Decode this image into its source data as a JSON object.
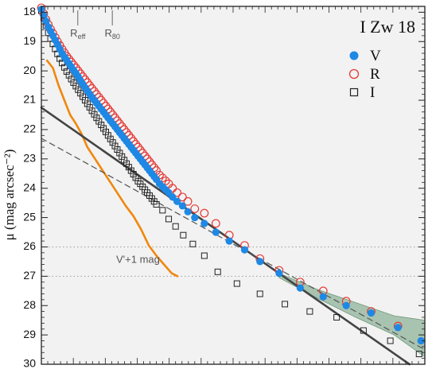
{
  "chart_data": {
    "type": "scatter",
    "title": "I Zw 18",
    "ylabel": "μ (mag arcsec⁻²)",
    "ylim": [
      30,
      17.8
    ],
    "y_inverted": true,
    "xlim": [
      0,
      100
    ],
    "y_ticks": [
      "18",
      "19",
      "20",
      "21",
      "22",
      "23",
      "24",
      "25",
      "26",
      "27",
      "28",
      "29",
      "30"
    ],
    "legend": {
      "placement": "top-right",
      "entries": [
        {
          "label": "V",
          "marker": "filled-circle",
          "color": "#1e88e5"
        },
        {
          "label": "R",
          "marker": "open-circle",
          "color": "#e53935"
        },
        {
          "label": "I",
          "marker": "open-square",
          "color": "#222222"
        }
      ]
    },
    "annotations": {
      "reff": {
        "label": "R",
        "sub": "eff",
        "x": 9.5
      },
      "r80": {
        "label": "R",
        "sub": "80",
        "x": 18.5
      },
      "offset_label": "V'+1 mag",
      "reference_levels": [
        26.0,
        27.0
      ]
    },
    "series": [
      {
        "name": "V",
        "color": "#1e88e5",
        "marker": "filled-circle",
        "points": [
          [
            0,
            17.9
          ],
          [
            0.6,
            18.1
          ],
          [
            1.2,
            18.3
          ],
          [
            1.8,
            18.5
          ],
          [
            2.4,
            18.65
          ],
          [
            3.0,
            18.8
          ],
          [
            3.6,
            18.95
          ],
          [
            4.2,
            19.1
          ],
          [
            4.8,
            19.25
          ],
          [
            5.4,
            19.4
          ],
          [
            6.0,
            19.52
          ],
          [
            6.6,
            19.63
          ],
          [
            7.2,
            19.75
          ],
          [
            7.8,
            19.86
          ],
          [
            8.4,
            19.97
          ],
          [
            9.0,
            20.08
          ],
          [
            9.6,
            20.2
          ],
          [
            10.2,
            20.33
          ],
          [
            10.8,
            20.45
          ],
          [
            11.4,
            20.57
          ],
          [
            12.0,
            20.68
          ],
          [
            12.6,
            20.79
          ],
          [
            13.2,
            20.9
          ],
          [
            13.8,
            21.0
          ],
          [
            14.4,
            21.1
          ],
          [
            15.0,
            21.2
          ],
          [
            15.6,
            21.3
          ],
          [
            16.2,
            21.4
          ],
          [
            16.8,
            21.5
          ],
          [
            17.4,
            21.6
          ],
          [
            18.0,
            21.7
          ],
          [
            18.6,
            21.8
          ],
          [
            19.2,
            21.9
          ],
          [
            19.8,
            22.0
          ],
          [
            20.4,
            22.1
          ],
          [
            21.0,
            22.2
          ],
          [
            21.6,
            22.3
          ],
          [
            22.2,
            22.4
          ],
          [
            22.8,
            22.5
          ],
          [
            23.4,
            22.6
          ],
          [
            24.0,
            22.7
          ],
          [
            24.6,
            22.8
          ],
          [
            25.2,
            22.9
          ],
          [
            25.8,
            23.0
          ],
          [
            26.4,
            23.1
          ],
          [
            27.0,
            23.2
          ],
          [
            27.6,
            23.3
          ],
          [
            28.2,
            23.4
          ],
          [
            28.8,
            23.5
          ],
          [
            29.4,
            23.6
          ],
          [
            30.0,
            23.7
          ],
          [
            30.8,
            23.85
          ],
          [
            31.6,
            23.95
          ],
          [
            32.4,
            24.05
          ],
          [
            33.2,
            24.15
          ],
          [
            34.2,
            24.3
          ],
          [
            35.4,
            24.45
          ],
          [
            36.8,
            24.6
          ],
          [
            38.2,
            24.8
          ],
          [
            40.0,
            25.0
          ],
          [
            42.5,
            25.2
          ],
          [
            45.5,
            25.5
          ],
          [
            49.0,
            25.8
          ],
          [
            53.0,
            26.1
          ],
          [
            57.0,
            26.5
          ],
          [
            62.0,
            26.9
          ],
          [
            67.5,
            27.4
          ],
          [
            73.5,
            27.7
          ],
          [
            79.5,
            28.0
          ],
          [
            86.0,
            28.25
          ],
          [
            93.0,
            28.75
          ],
          [
            99.0,
            29.2
          ]
        ]
      },
      {
        "name": "R",
        "color": "#e53935",
        "marker": "open-circle",
        "points": [
          [
            0,
            17.85
          ],
          [
            0.6,
            18.05
          ],
          [
            1.2,
            18.25
          ],
          [
            1.8,
            18.42
          ],
          [
            2.4,
            18.58
          ],
          [
            3.0,
            18.72
          ],
          [
            3.6,
            18.86
          ],
          [
            4.2,
            19.0
          ],
          [
            4.8,
            19.13
          ],
          [
            5.4,
            19.26
          ],
          [
            6.0,
            19.38
          ],
          [
            6.6,
            19.5
          ],
          [
            7.2,
            19.6
          ],
          [
            7.8,
            19.7
          ],
          [
            8.4,
            19.8
          ],
          [
            9.0,
            19.9
          ],
          [
            9.6,
            20.0
          ],
          [
            10.2,
            20.1
          ],
          [
            10.8,
            20.2
          ],
          [
            11.4,
            20.3
          ],
          [
            12.0,
            20.4
          ],
          [
            12.6,
            20.5
          ],
          [
            13.2,
            20.6
          ],
          [
            13.8,
            20.7
          ],
          [
            14.4,
            20.8
          ],
          [
            15.0,
            20.9
          ],
          [
            15.6,
            21.0
          ],
          [
            16.2,
            21.1
          ],
          [
            16.8,
            21.2
          ],
          [
            17.4,
            21.3
          ],
          [
            18.0,
            21.4
          ],
          [
            18.6,
            21.5
          ],
          [
            19.2,
            21.6
          ],
          [
            19.8,
            21.7
          ],
          [
            20.4,
            21.8
          ],
          [
            21.0,
            21.9
          ],
          [
            21.6,
            22.0
          ],
          [
            22.2,
            22.1
          ],
          [
            22.8,
            22.2
          ],
          [
            23.4,
            22.3
          ],
          [
            24.0,
            22.4
          ],
          [
            24.6,
            22.5
          ],
          [
            25.2,
            22.6
          ],
          [
            25.8,
            22.7
          ],
          [
            26.4,
            22.8
          ],
          [
            27.0,
            22.9
          ],
          [
            27.6,
            23.0
          ],
          [
            28.2,
            23.1
          ],
          [
            28.8,
            23.2
          ],
          [
            29.4,
            23.3
          ],
          [
            30.0,
            23.4
          ],
          [
            30.8,
            23.55
          ],
          [
            31.6,
            23.65
          ],
          [
            32.4,
            23.75
          ],
          [
            33.2,
            23.85
          ],
          [
            34.2,
            24.0
          ],
          [
            35.4,
            24.15
          ],
          [
            36.8,
            24.3
          ],
          [
            38.2,
            24.45
          ],
          [
            40.0,
            24.7
          ],
          [
            42.5,
            24.85
          ],
          [
            45.5,
            25.2
          ],
          [
            49.0,
            25.6
          ],
          [
            53.0,
            25.95
          ],
          [
            57.0,
            26.4
          ],
          [
            62.0,
            26.8
          ],
          [
            67.5,
            27.2
          ],
          [
            73.5,
            27.5
          ],
          [
            79.5,
            27.85
          ],
          [
            86.0,
            28.2
          ],
          [
            93.0,
            28.7
          ]
        ]
      },
      {
        "name": "I",
        "color": "#222222",
        "marker": "open-square",
        "points": [
          [
            0,
            17.95
          ],
          [
            0.6,
            18.2
          ],
          [
            1.2,
            18.45
          ],
          [
            1.8,
            18.7
          ],
          [
            2.4,
            18.9
          ],
          [
            3.0,
            19.08
          ],
          [
            3.6,
            19.25
          ],
          [
            4.2,
            19.42
          ],
          [
            4.8,
            19.58
          ],
          [
            5.4,
            19.73
          ],
          [
            6.0,
            19.88
          ],
          [
            6.6,
            20.02
          ],
          [
            7.2,
            20.15
          ],
          [
            7.8,
            20.28
          ],
          [
            8.4,
            20.4
          ],
          [
            9.0,
            20.52
          ],
          [
            9.6,
            20.64
          ],
          [
            10.2,
            20.76
          ],
          [
            10.8,
            20.88
          ],
          [
            11.4,
            21.0
          ],
          [
            12.0,
            21.12
          ],
          [
            12.6,
            21.24
          ],
          [
            13.2,
            21.36
          ],
          [
            13.8,
            21.48
          ],
          [
            14.4,
            21.6
          ],
          [
            15.0,
            21.72
          ],
          [
            15.6,
            21.84
          ],
          [
            16.2,
            21.96
          ],
          [
            16.8,
            22.08
          ],
          [
            17.4,
            22.2
          ],
          [
            18.0,
            22.32
          ],
          [
            18.6,
            22.44
          ],
          [
            19.2,
            22.56
          ],
          [
            19.8,
            22.68
          ],
          [
            20.4,
            22.8
          ],
          [
            21.0,
            22.92
          ],
          [
            21.6,
            23.04
          ],
          [
            22.2,
            23.16
          ],
          [
            22.8,
            23.28
          ],
          [
            23.4,
            23.4
          ],
          [
            24.0,
            23.52
          ],
          [
            24.6,
            23.64
          ],
          [
            25.2,
            23.76
          ],
          [
            25.8,
            23.85
          ],
          [
            26.4,
            23.95
          ],
          [
            27.0,
            24.05
          ],
          [
            27.6,
            24.15
          ],
          [
            28.2,
            24.25
          ],
          [
            28.8,
            24.35
          ],
          [
            29.4,
            24.45
          ],
          [
            30.0,
            24.55
          ],
          [
            31.6,
            24.75
          ],
          [
            33.2,
            25.05
          ],
          [
            35.0,
            25.3
          ],
          [
            37.0,
            25.6
          ],
          [
            39.5,
            25.9
          ],
          [
            42.5,
            26.3
          ],
          [
            46.0,
            26.85
          ],
          [
            51.0,
            27.25
          ],
          [
            57.0,
            27.6
          ],
          [
            63.5,
            27.95
          ],
          [
            70.0,
            28.2
          ],
          [
            77.0,
            28.4
          ],
          [
            84.0,
            28.85
          ],
          [
            91.0,
            29.2
          ],
          [
            98.5,
            29.65
          ]
        ]
      }
    ],
    "curves": [
      {
        "name": "V'+1 mag",
        "color": "#f0870f",
        "style": "solid",
        "points": [
          [
            1.5,
            19.65
          ],
          [
            3,
            19.9
          ],
          [
            4.5,
            20.5
          ],
          [
            6,
            21.0
          ],
          [
            7.5,
            21.5
          ],
          [
            9,
            21.8
          ],
          [
            10.5,
            22.15
          ],
          [
            12,
            22.6
          ],
          [
            14,
            23.0
          ],
          [
            16,
            23.4
          ],
          [
            18,
            23.8
          ],
          [
            20,
            24.2
          ],
          [
            22,
            24.6
          ],
          [
            24,
            24.95
          ],
          [
            26,
            25.4
          ],
          [
            28,
            25.95
          ],
          [
            30,
            26.3
          ],
          [
            32,
            26.6
          ],
          [
            34,
            26.9
          ],
          [
            35.5,
            27.0
          ]
        ]
      },
      {
        "name": "fit-solid",
        "color": "#444444",
        "style": "solid",
        "points": [
          [
            0,
            21.25
          ],
          [
            96,
            30.0
          ]
        ]
      },
      {
        "name": "fit-dashed",
        "color": "#555555",
        "style": "dashed",
        "points": [
          [
            0,
            22.3
          ],
          [
            100,
            29.5
          ]
        ]
      }
    ],
    "uncertainty_band": {
      "color": "#8fb399",
      "upper": [
        [
          62,
          26.9
        ],
        [
          72,
          27.45
        ],
        [
          82,
          27.9
        ],
        [
          92,
          28.35
        ],
        [
          100,
          28.5
        ]
      ],
      "lower": [
        [
          62,
          27.05
        ],
        [
          72,
          27.75
        ],
        [
          82,
          28.4
        ],
        [
          92,
          29.0
        ],
        [
          100,
          29.75
        ]
      ]
    }
  }
}
